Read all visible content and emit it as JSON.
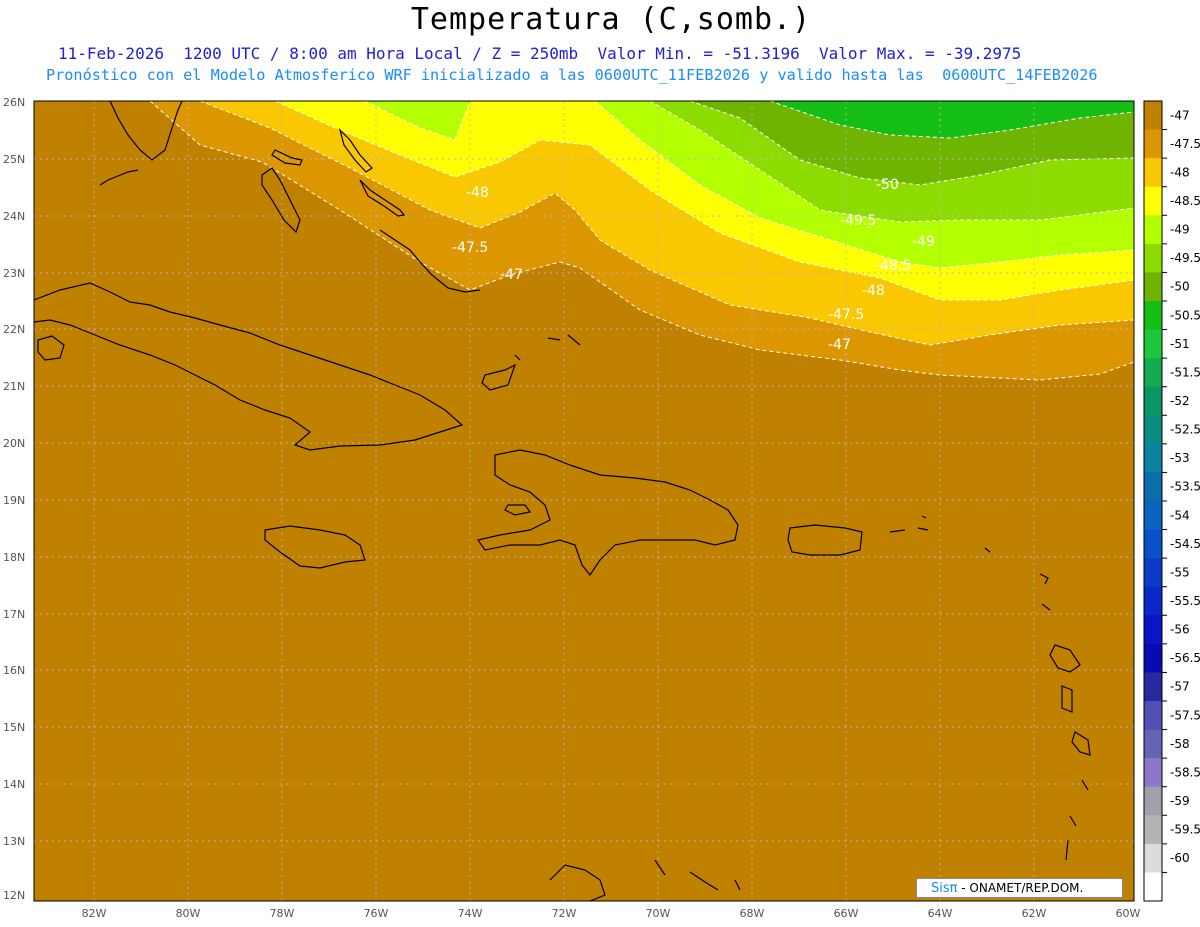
{
  "header": {
    "title": "Temperatura (C,somb.)",
    "line1": "11-Feb-2026  1200 UTC / 8:00 am Hora Local / Z = 250mb  Valor Min. = -51.3196  Valor Max. = -39.2975",
    "line2": "Pronóstico con el Modelo Atmosferico WRF inicializado a las 0600UTC_11FEB2026 y valido hasta las  0600UTC_14FEB2026"
  },
  "map": {
    "lat_labels": [
      "26N",
      "25N",
      "24N",
      "23N",
      "22N",
      "21N",
      "20N",
      "19N",
      "18N",
      "17N",
      "16N",
      "15N",
      "14N",
      "13N",
      "12N"
    ],
    "lon_labels": [
      "82W",
      "80W",
      "78W",
      "76W",
      "74W",
      "72W",
      "70W",
      "68W",
      "66W",
      "64W",
      "62W",
      "60W"
    ],
    "contour_labels": [
      "-48",
      "-47.5",
      "-47",
      "-50",
      "-49.5",
      "-49",
      "-48.5",
      "-48",
      "-47.5",
      "-47"
    ],
    "fill_colors": {
      "base": "#c08000",
      "m47_5": "#dc9600",
      "m48": "#fac800",
      "m48_5": "#ffff00",
      "m49": "#b4ff00",
      "m49_5": "#8cdc00",
      "m50": "#6eb400",
      "m50_5": "#14be14"
    }
  },
  "colorbar": {
    "labels": [
      "-47",
      "-47.5",
      "-48",
      "-48.5",
      "-49",
      "-49.5",
      "-50",
      "-50.5",
      "-51",
      "-51.5",
      "-52",
      "-52.5",
      "-53",
      "-53.5",
      "-54",
      "-54.5",
      "-55",
      "-55.5",
      "-56",
      "-56.5",
      "-57",
      "-57.5",
      "-58",
      "-58.5",
      "-59",
      "-59.5",
      "-60"
    ],
    "colors": [
      "#c08000",
      "#dc9600",
      "#fac800",
      "#ffff00",
      "#b4ff00",
      "#8cdc00",
      "#6eb400",
      "#14be14",
      "#1ec83c",
      "#14aa50",
      "#0a9664",
      "#0a8c82",
      "#0a82a0",
      "#0a6eaa",
      "#0a64be",
      "#0a50c8",
      "#0a3cc8",
      "#0a28c8",
      "#0a14c8",
      "#0a0ab4",
      "#2828a0",
      "#5050b4",
      "#6464b4",
      "#8c78c8",
      "#a0a0aa",
      "#b4b4b4",
      "#dcdcdc",
      "#ffffff"
    ]
  },
  "credit": {
    "brand": "Sisπ",
    "text": " -  ONAMET/REP.DOM."
  }
}
